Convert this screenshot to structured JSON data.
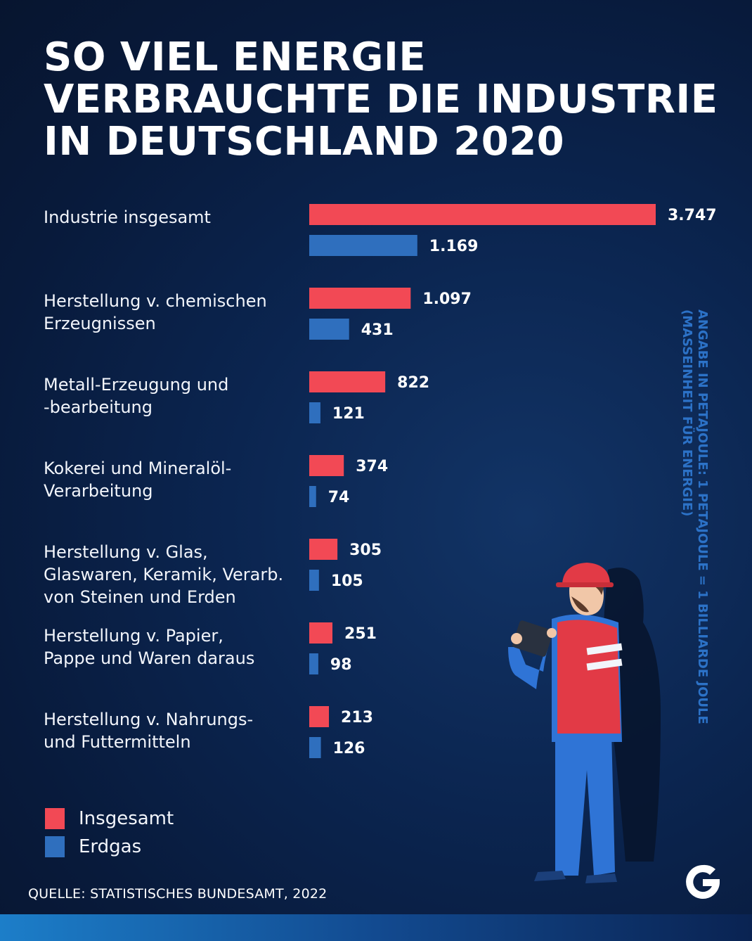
{
  "title_lines": [
    "SO VIEL ENERGIE",
    "VERBRAUCHTE DIE INDUSTRIE",
    "IN DEUTSCHLAND 2020"
  ],
  "side_note_lines": [
    "ANGABE IN PETAJOULE: 1 PETAJOULE = 1 BILLIARDE JOULE",
    "(MASSEINHEIT FÜR ENERGIE)"
  ],
  "source": "QUELLE: STATISTISCHES BUNDESAMT, 2022",
  "colors": {
    "insgesamt": "#f24955",
    "erdgas": "#2f6fbe",
    "background": "#0b2550"
  },
  "legend": [
    {
      "label": "Insgesamt",
      "color": "#f24955"
    },
    {
      "label": "Erdgas",
      "color": "#2f6fbe"
    }
  ],
  "icons": {
    "worker": "worker-with-tablet-illustration",
    "logo": "g-logo"
  },
  "chart_data": {
    "type": "bar",
    "orientation": "horizontal",
    "categories": [
      "Industrie insgesamt",
      "Herstellung v. chemischen Erzeugnissen",
      "Metall-Erzeugung und -bearbeitung",
      "Kokerei und Mineralöl-Verarbeitung",
      "Herstellung v. Glas, Glaswaren, Keramik, Verarb. von Steinen und Erden",
      "Herstellung v. Papier, Pappe und Waren daraus",
      "Herstellung v. Nahrungs- und Futtermitteln"
    ],
    "category_label_lines": [
      [
        "Industrie insgesamt"
      ],
      [
        "Herstellung v. chemischen",
        "Erzeugnissen"
      ],
      [
        "Metall-Erzeugung und",
        "-bearbeitung"
      ],
      [
        "Kokerei und Mineralöl-",
        "Verarbeitung"
      ],
      [
        "Herstellung v. Glas,",
        "Glaswaren, Keramik, Verarb.",
        "von Steinen und Erden"
      ],
      [
        "Herstellung v. Papier,",
        "Pappe und Waren daraus"
      ],
      [
        "Herstellung v. Nahrungs-",
        "und Futtermitteln"
      ]
    ],
    "series": [
      {
        "name": "Insgesamt",
        "values": [
          3747,
          1097,
          822,
          374,
          305,
          251,
          213
        ],
        "labels": [
          "3.747",
          "1.097",
          "822",
          "374",
          "305",
          "251",
          "213"
        ]
      },
      {
        "name": "Erdgas",
        "values": [
          1169,
          431,
          121,
          74,
          105,
          98,
          126
        ],
        "labels": [
          "1.169",
          "431",
          "121",
          "74",
          "105",
          "98",
          "126"
        ]
      }
    ],
    "unit": "Petajoule",
    "xlim": [
      0,
      3747
    ],
    "grid": false,
    "legend_position": "bottom-left"
  }
}
